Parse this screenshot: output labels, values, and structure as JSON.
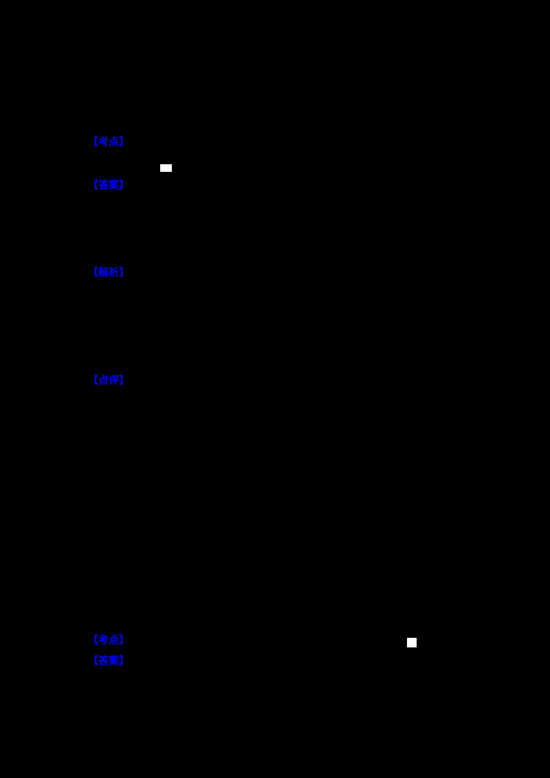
{
  "document": {
    "background_color": "#000000",
    "link_color": "#0000ff",
    "placeholder_color": "#ffffff",
    "tags": [
      {
        "label": "【考点】"
      },
      {
        "label": "【答案】"
      },
      {
        "label": "【解析】"
      },
      {
        "label": "【点评】"
      },
      {
        "label": "【考点】"
      },
      {
        "label": "【答案】"
      }
    ]
  }
}
